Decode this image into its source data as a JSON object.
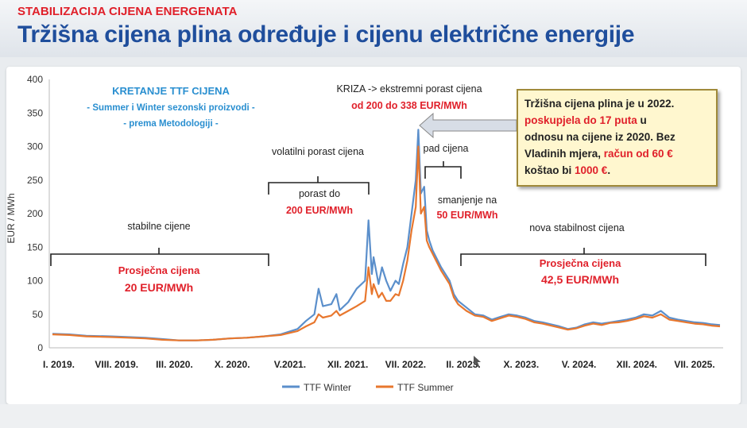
{
  "header": {
    "kicker": "STABILIZACIJA CIJENA ENERGENATA",
    "title": "Tržišna cijena plina određuje i cijenu električne energije"
  },
  "colors": {
    "winter": "#5b8fcb",
    "summer": "#e8772e",
    "title": "#1f4e9c",
    "accent": "#e0202a",
    "subtitle": "#2a8fd0"
  },
  "chart_data": {
    "type": "line",
    "ylabel": "EUR / MWh",
    "ylim": [
      0,
      400
    ],
    "yticks": [
      0,
      50,
      100,
      150,
      200,
      250,
      300,
      350,
      400
    ],
    "xlabels": [
      "I. 2019.",
      "VIII. 2019.",
      "III. 2020.",
      "X. 2020.",
      "V.2021.",
      "XII. 2021.",
      "VII. 2022.",
      "II. 2023.",
      "X. 2023.",
      "V. 2024.",
      "XII. 2024.",
      "VII. 2025."
    ],
    "xlim_months": [
      0,
      79
    ],
    "legend": "bottom",
    "grid": false,
    "series": [
      {
        "name": "TTF Winter",
        "color": "#5b8fcb",
        "points": [
          [
            0,
            21
          ],
          [
            2,
            20
          ],
          [
            4,
            18
          ],
          [
            7,
            17
          ],
          [
            9,
            16
          ],
          [
            11,
            15
          ],
          [
            13,
            13
          ],
          [
            15,
            11
          ],
          [
            17,
            11
          ],
          [
            19,
            12
          ],
          [
            21,
            14
          ],
          [
            23,
            15
          ],
          [
            25,
            17
          ],
          [
            27,
            20
          ],
          [
            28,
            24
          ],
          [
            29,
            28
          ],
          [
            30,
            40
          ],
          [
            31,
            50
          ],
          [
            31.5,
            88
          ],
          [
            32,
            62
          ],
          [
            33,
            65
          ],
          [
            33.6,
            80
          ],
          [
            34,
            56
          ],
          [
            35,
            68
          ],
          [
            36,
            88
          ],
          [
            37,
            100
          ],
          [
            37.4,
            190
          ],
          [
            37.8,
            110
          ],
          [
            38,
            135
          ],
          [
            38.6,
            95
          ],
          [
            39,
            120
          ],
          [
            39.5,
            100
          ],
          [
            40,
            85
          ],
          [
            40.6,
            100
          ],
          [
            41,
            95
          ],
          [
            41.5,
            125
          ],
          [
            42,
            150
          ],
          [
            42.5,
            200
          ],
          [
            43,
            250
          ],
          [
            43.3,
            325
          ],
          [
            43.6,
            230
          ],
          [
            44,
            240
          ],
          [
            44.3,
            175
          ],
          [
            44.6,
            160
          ],
          [
            45,
            145
          ],
          [
            46,
            120
          ],
          [
            47,
            100
          ],
          [
            47.5,
            80
          ],
          [
            48,
            70
          ],
          [
            49,
            60
          ],
          [
            50,
            50
          ],
          [
            51,
            48
          ],
          [
            52,
            42
          ],
          [
            53,
            46
          ],
          [
            54,
            50
          ],
          [
            55,
            48
          ],
          [
            56,
            45
          ],
          [
            57,
            40
          ],
          [
            58,
            38
          ],
          [
            59,
            35
          ],
          [
            60,
            32
          ],
          [
            61,
            28
          ],
          [
            62,
            30
          ],
          [
            63,
            35
          ],
          [
            64,
            38
          ],
          [
            65,
            36
          ],
          [
            66,
            38
          ],
          [
            67,
            40
          ],
          [
            68,
            42
          ],
          [
            69,
            45
          ],
          [
            70,
            50
          ],
          [
            71,
            48
          ],
          [
            72,
            55
          ],
          [
            73,
            45
          ],
          [
            74,
            42
          ],
          [
            75,
            40
          ],
          [
            76,
            38
          ],
          [
            77,
            37
          ],
          [
            78,
            35
          ],
          [
            79,
            34
          ]
        ]
      },
      {
        "name": "TTF Summer",
        "color": "#e8772e",
        "points": [
          [
            0,
            20
          ],
          [
            2,
            19
          ],
          [
            4,
            17
          ],
          [
            7,
            16
          ],
          [
            9,
            15
          ],
          [
            11,
            14
          ],
          [
            13,
            12
          ],
          [
            15,
            11
          ],
          [
            17,
            11
          ],
          [
            19,
            12
          ],
          [
            21,
            14
          ],
          [
            23,
            15
          ],
          [
            25,
            17
          ],
          [
            27,
            19
          ],
          [
            28,
            22
          ],
          [
            29,
            25
          ],
          [
            30,
            32
          ],
          [
            31,
            38
          ],
          [
            31.5,
            50
          ],
          [
            32,
            45
          ],
          [
            33,
            48
          ],
          [
            33.6,
            55
          ],
          [
            34,
            48
          ],
          [
            35,
            55
          ],
          [
            36,
            62
          ],
          [
            37,
            70
          ],
          [
            37.4,
            120
          ],
          [
            37.8,
            80
          ],
          [
            38,
            95
          ],
          [
            38.6,
            75
          ],
          [
            39,
            82
          ],
          [
            39.5,
            70
          ],
          [
            40,
            70
          ],
          [
            40.6,
            80
          ],
          [
            41,
            78
          ],
          [
            41.5,
            100
          ],
          [
            42,
            130
          ],
          [
            42.5,
            175
          ],
          [
            43,
            210
          ],
          [
            43.3,
            300
          ],
          [
            43.6,
            200
          ],
          [
            44,
            210
          ],
          [
            44.3,
            160
          ],
          [
            44.6,
            150
          ],
          [
            45,
            140
          ],
          [
            46,
            115
          ],
          [
            47,
            95
          ],
          [
            47.5,
            75
          ],
          [
            48,
            65
          ],
          [
            49,
            55
          ],
          [
            50,
            48
          ],
          [
            51,
            46
          ],
          [
            52,
            40
          ],
          [
            53,
            44
          ],
          [
            54,
            48
          ],
          [
            55,
            46
          ],
          [
            56,
            43
          ],
          [
            57,
            38
          ],
          [
            58,
            36
          ],
          [
            59,
            33
          ],
          [
            60,
            30
          ],
          [
            61,
            27
          ],
          [
            62,
            29
          ],
          [
            63,
            33
          ],
          [
            64,
            36
          ],
          [
            65,
            34
          ],
          [
            66,
            37
          ],
          [
            67,
            38
          ],
          [
            68,
            40
          ],
          [
            69,
            43
          ],
          [
            70,
            47
          ],
          [
            71,
            45
          ],
          [
            72,
            50
          ],
          [
            73,
            42
          ],
          [
            74,
            40
          ],
          [
            75,
            38
          ],
          [
            76,
            36
          ],
          [
            77,
            35
          ],
          [
            78,
            33
          ],
          [
            79,
            32
          ]
        ]
      }
    ]
  },
  "annotations": {
    "chart_title": "KRETANJE TTF CIJENA",
    "chart_sub1": "- Summer i Winter sezonski proizvodi -",
    "chart_sub2": "- prema Metodologiji -",
    "crisis_label": "KRIZA -> ekstremni porast cijena",
    "crisis_range": "od 200 do 338 EUR/MWh",
    "volatile_label": "volatilni porast cijena",
    "growth_label": "porast do",
    "growth_value": "200 EUR/MWh",
    "drop_label": "pad cijena",
    "reduce_label": "smanjenje na",
    "reduce_value": "50 EUR/MWh",
    "stable_label": "stabilne cijene",
    "avg_label_1": "Prosječna cijena",
    "avg_value_1": "20 EUR/MWh",
    "new_stable_label": "nova stabilnost cijena",
    "avg_label_2": "Prosječna cijena",
    "avg_value_2": "42,5 EUR/MWh"
  },
  "callout": {
    "l1": "Tržišna cijena plina je u 2022.",
    "l2a": "poskupjela do 17 puta",
    "l2b": " u",
    "l3": "odnosu na cijene iz 2020. Bez",
    "l4a": "Vladinih mjera, ",
    "l4b": "račun od 60 €",
    "l5a": "koštao bi ",
    "l5b": "1000 €",
    "l5c": "."
  }
}
